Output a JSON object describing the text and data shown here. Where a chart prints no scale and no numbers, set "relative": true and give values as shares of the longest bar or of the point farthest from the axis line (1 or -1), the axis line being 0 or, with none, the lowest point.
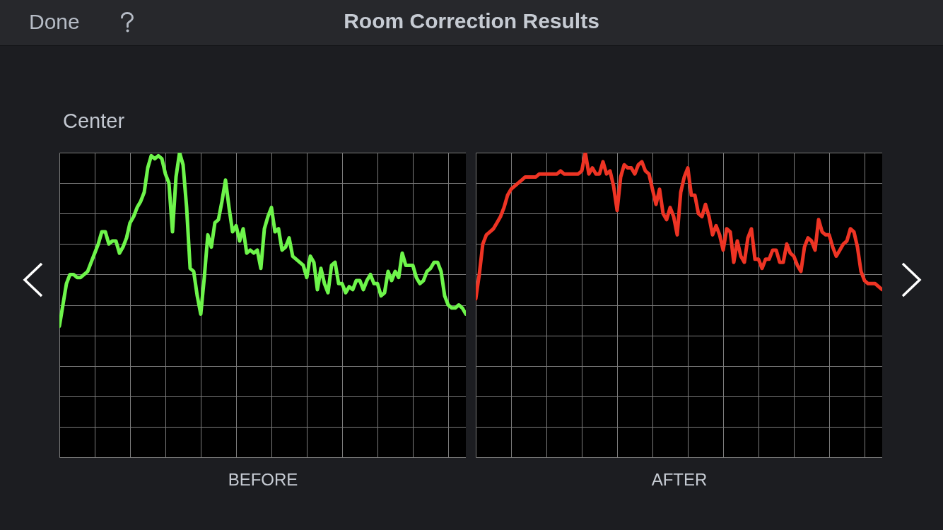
{
  "chart_data": [
    {
      "type": "line",
      "title": "Room Correction Results",
      "subtitle": "Center",
      "annotations": [
        "Done"
      ],
      "xlabel": "BEFORE",
      "relative": true,
      "grid": true,
      "categories": [
        null,
        null,
        null,
        null,
        null,
        null,
        null,
        null,
        null,
        null,
        null,
        null,
        null,
        null,
        null,
        null,
        null,
        null,
        null,
        null,
        null,
        null,
        null,
        null,
        null,
        null,
        null,
        null,
        null,
        null,
        null,
        null,
        null,
        null,
        null,
        null,
        null,
        null,
        null,
        null,
        null,
        null,
        null,
        null,
        null,
        null,
        null,
        null,
        null,
        null,
        null,
        null,
        null,
        null,
        null,
        null,
        null,
        null,
        null,
        null,
        null,
        null,
        null,
        null,
        null,
        null,
        null,
        null,
        null,
        null,
        null,
        null,
        null,
        null,
        null,
        null,
        null,
        null,
        null,
        null,
        null,
        null,
        null,
        null,
        null,
        null,
        null,
        null,
        null,
        null,
        null,
        null,
        null,
        null,
        null,
        null,
        null,
        null,
        null,
        null,
        null,
        null,
        null,
        null,
        null,
        null,
        null,
        null,
        null,
        null,
        null,
        null,
        null,
        null,
        null,
        null
      ],
      "series": [
        {
          "color": "#6ef54b",
          "values": [
            0.43,
            0.5,
            0.57,
            0.6,
            0.6,
            0.59,
            0.59,
            0.6,
            0.61,
            0.64,
            0.67,
            0.7,
            0.74,
            0.74,
            0.7,
            0.71,
            0.71,
            0.67,
            0.69,
            0.72,
            0.77,
            0.79,
            0.82,
            0.84,
            0.87,
            0.95,
            0.99,
            0.98,
            0.99,
            0.98,
            0.93,
            0.9,
            0.74,
            0.92,
            1.0,
            0.96,
            0.82,
            0.62,
            0.61,
            0.53,
            0.47,
            0.59,
            0.73,
            0.69,
            0.77,
            0.78,
            0.84,
            0.91,
            0.82,
            0.74,
            0.76,
            0.71,
            0.75,
            0.67,
            0.68,
            0.67,
            0.68,
            0.62,
            0.75,
            0.79,
            0.82,
            0.74,
            0.75,
            0.68,
            0.69,
            0.72,
            0.66,
            0.65,
            0.64,
            0.63,
            0.59,
            0.66,
            0.64,
            0.55,
            0.62,
            0.57,
            0.54,
            0.63,
            0.64,
            0.57,
            0.57,
            0.54,
            0.56,
            0.55,
            0.58,
            0.58,
            0.55,
            0.58,
            0.6,
            0.57,
            0.57,
            0.53,
            0.54,
            0.61,
            0.58,
            0.61,
            0.59,
            0.67,
            0.63,
            0.63,
            0.63,
            0.59,
            0.57,
            0.58,
            0.61,
            0.62,
            0.64,
            0.64,
            0.61,
            0.53,
            0.5,
            0.49,
            0.49,
            0.5,
            0.49,
            0.47
          ]
        }
      ]
    },
    {
      "type": "line",
      "xlabel": "AFTER",
      "relative": true,
      "grid": true,
      "categories": [
        null,
        null,
        null,
        null,
        null,
        null,
        null,
        null,
        null,
        null,
        null,
        null,
        null,
        null,
        null,
        null,
        null,
        null,
        null,
        null,
        null,
        null,
        null,
        null,
        null,
        null,
        null,
        null,
        null,
        null,
        null,
        null,
        null,
        null,
        null,
        null,
        null,
        null,
        null,
        null,
        null,
        null,
        null,
        null,
        null,
        null,
        null,
        null,
        null,
        null,
        null,
        null,
        null,
        null,
        null,
        null,
        null,
        null,
        null,
        null,
        null,
        null,
        null,
        null,
        null,
        null,
        null,
        null,
        null,
        null,
        null,
        null,
        null,
        null,
        null,
        null,
        null,
        null,
        null,
        null,
        null,
        null,
        null,
        null,
        null,
        null,
        null,
        null,
        null,
        null,
        null,
        null,
        null,
        null,
        null,
        null,
        null,
        null,
        null,
        null,
        null,
        null,
        null,
        null,
        null,
        null,
        null,
        null,
        null,
        null,
        null,
        null,
        null,
        null,
        null,
        null
      ],
      "series": [
        {
          "color": "#ee3424",
          "values": [
            0.52,
            0.6,
            0.7,
            0.73,
            0.74,
            0.75,
            0.77,
            0.79,
            0.82,
            0.86,
            0.88,
            0.89,
            0.9,
            0.91,
            0.92,
            0.92,
            0.92,
            0.92,
            0.93,
            0.93,
            0.93,
            0.93,
            0.93,
            0.93,
            0.94,
            0.93,
            0.93,
            0.93,
            0.93,
            0.93,
            0.94,
            1.0,
            0.93,
            0.95,
            0.93,
            0.93,
            0.97,
            0.93,
            0.94,
            0.89,
            0.81,
            0.92,
            0.96,
            0.95,
            0.95,
            0.93,
            0.96,
            0.97,
            0.94,
            0.93,
            0.88,
            0.83,
            0.88,
            0.8,
            0.78,
            0.82,
            0.79,
            0.73,
            0.87,
            0.92,
            0.95,
            0.86,
            0.86,
            0.8,
            0.79,
            0.83,
            0.79,
            0.73,
            0.76,
            0.73,
            0.68,
            0.75,
            0.74,
            0.64,
            0.71,
            0.66,
            0.64,
            0.72,
            0.75,
            0.65,
            0.65,
            0.62,
            0.65,
            0.65,
            0.68,
            0.68,
            0.64,
            0.64,
            0.7,
            0.67,
            0.66,
            0.63,
            0.61,
            0.69,
            0.72,
            0.71,
            0.68,
            0.78,
            0.74,
            0.73,
            0.73,
            0.69,
            0.66,
            0.68,
            0.7,
            0.71,
            0.75,
            0.74,
            0.69,
            0.61,
            0.58,
            0.57,
            0.57,
            0.57,
            0.56,
            0.55
          ]
        }
      ]
    }
  ]
}
